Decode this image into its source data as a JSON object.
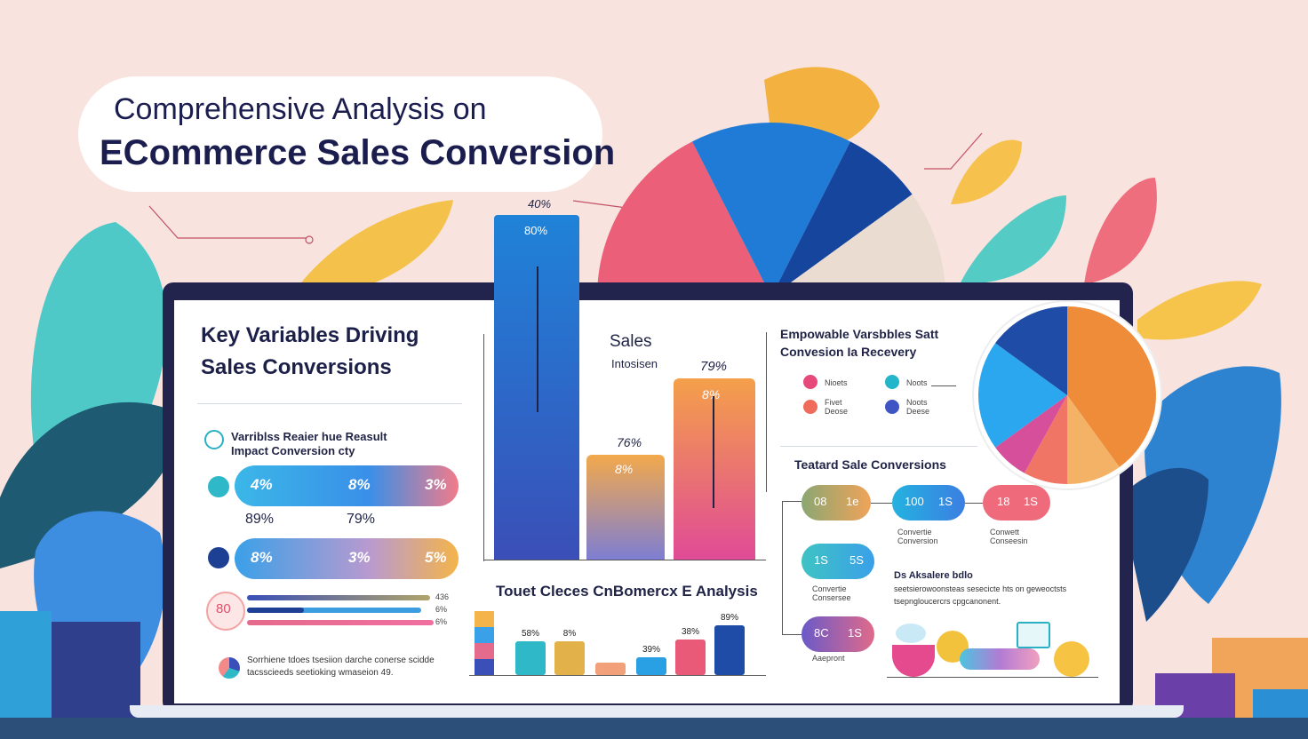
{
  "title": {
    "line1": "Comprehensive Analysis on",
    "line2": "ECommerce Sales Conversion"
  },
  "left_panel": {
    "heading_line1": "Key Variables Driving",
    "heading_line2": "Sales Conversions",
    "sub_line1": "Varriblss Reaier hue Reasult",
    "sub_line2": "Impact Conversion cty",
    "pill1": {
      "a": "4%",
      "b": "8%",
      "c": "3%"
    },
    "under1": {
      "a": "89%",
      "b": "79%"
    },
    "pill2": {
      "a": "8%",
      "b": "3%",
      "c": "5%"
    },
    "circle_label": "80",
    "bar_values": [
      "436",
      "6%",
      "6%"
    ],
    "footer_line1": "Sorrhiene tdoes tsesiion darche conerse scidde",
    "footer_line2": "tacsscieeds seetioking wmaseion 49."
  },
  "center_panel": {
    "big_bar_top": "40%",
    "big_bar_label": "80%",
    "sales_title": "Sales",
    "sales_sub": "Intosisen",
    "pct_79": "79%",
    "pct_76": "76%",
    "bar2_label": "8%",
    "bar3_label": "8%",
    "heading": "Touet Cleces CnBomercx E Analysis",
    "small_bars": [
      "58%",
      "8%",
      "39%",
      "38%",
      "89%"
    ]
  },
  "right_panel": {
    "title_line1": "Empowable Varsbbles Satt",
    "title_line2": "Convesion Ia Recevery",
    "legend": [
      {
        "label": "Nioets",
        "color": "#e6497a"
      },
      {
        "label": "Noots",
        "color": "#23b5c9"
      },
      {
        "label": "Fivet Deose",
        "color": "#ef6b5c"
      },
      {
        "label": "Noots Deese",
        "color": "#3f55c4"
      }
    ],
    "conv_heading": "Teatard Sale Conversions",
    "badges": [
      {
        "a": "08",
        "b": "1e"
      },
      {
        "a": "100",
        "b": "1S"
      },
      {
        "a": "18",
        "b": "1S"
      },
      {
        "a": "1S",
        "b": "5S"
      },
      {
        "a": "8C",
        "b": "1S"
      }
    ],
    "badge_caps": [
      "Convertie Conversion",
      "Conwett Conseesin",
      "Convertie Consersee",
      "Aaepront"
    ],
    "note_title": "Ds Aksalere bdlo",
    "note_line1": "seetsierowoonsteas sesecicte hts on geweoctsts",
    "note_line2": "tsepngloucercrs cpgcanonent."
  },
  "colors": {
    "background": "#f8e3de",
    "navy": "#1a1d4e",
    "blue": "#1f7bd6",
    "orange": "#f2a24c",
    "pink": "#e84e87",
    "teal": "#4fc7c9"
  },
  "pie_top": [
    {
      "label": "pink",
      "value": 35,
      "color": "#ec5f79"
    },
    {
      "label": "blue",
      "value": 30,
      "color": "#1f7bd6"
    },
    {
      "label": "navy",
      "value": 15,
      "color": "#15459d"
    },
    {
      "label": "beige",
      "value": 20,
      "color": "#ebdcd2"
    }
  ],
  "pie_right": [
    {
      "label": "orange",
      "value": 40,
      "color": "#ee8c3a"
    },
    {
      "label": "light-orange",
      "value": 10,
      "color": "#f4b266"
    },
    {
      "label": "coral",
      "value": 8,
      "color": "#f17565"
    },
    {
      "label": "magenta",
      "value": 7,
      "color": "#d64f9a"
    },
    {
      "label": "sky",
      "value": 20,
      "color": "#2aa7ef"
    },
    {
      "label": "navy",
      "value": 15,
      "color": "#1e4ca6"
    }
  ]
}
